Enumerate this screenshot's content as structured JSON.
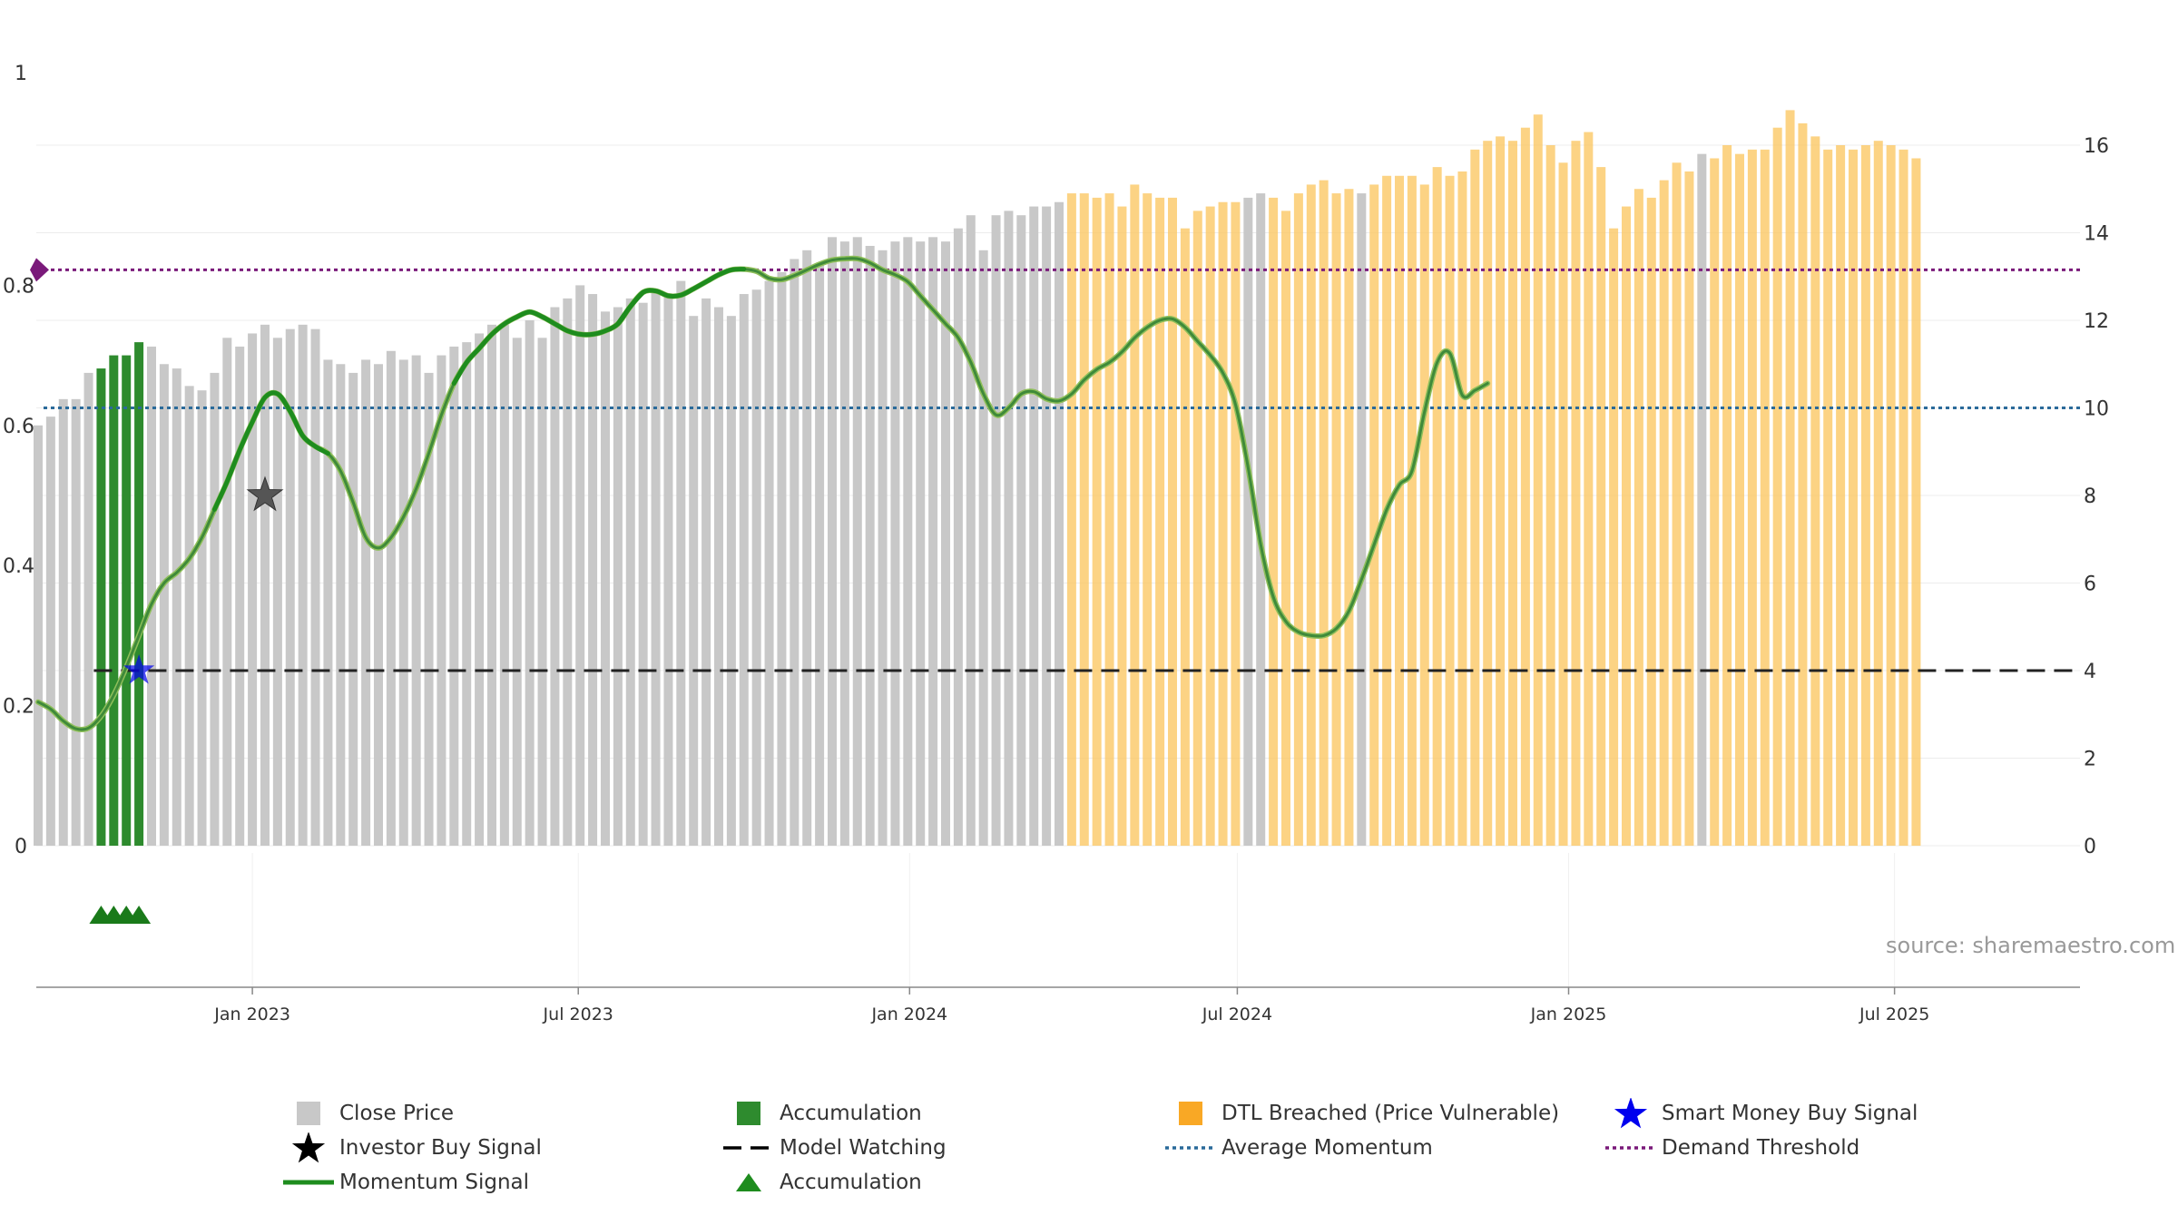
{
  "chart_data": {
    "type": "bar",
    "title": "",
    "source": "source: sharemaestro.com",
    "left_axis": {
      "ticks": [
        "0",
        "0.2",
        "0.4",
        "0.6",
        "0.8",
        "1"
      ],
      "range": [
        0,
        1
      ]
    },
    "right_axis": {
      "ticks": [
        "0",
        "2",
        "4",
        "6",
        "8",
        "10",
        "12",
        "14",
        "16"
      ],
      "range": [
        0,
        16
      ]
    },
    "x_axis": {
      "range": [
        "2022-09-03",
        "2025-10-12"
      ],
      "ticks": [
        "Jan 2023",
        "Jul 2023",
        "Jan 2024",
        "Jul 2024",
        "Jan 2025",
        "Jul 2025"
      ]
    },
    "weekly_start": "2022-09-04",
    "close_price": [
      9.6,
      9.8,
      10.2,
      10.2,
      10.8,
      10.9,
      11.2,
      11.2,
      11.5,
      11.4,
      11.0,
      10.9,
      10.5,
      10.4,
      10.8,
      11.6,
      11.4,
      11.7,
      11.9,
      11.6,
      11.8,
      11.9,
      11.8,
      11.1,
      11.0,
      10.8,
      11.1,
      11.0,
      11.3,
      11.1,
      11.2,
      10.8,
      11.2,
      11.4,
      11.5,
      11.7,
      11.9,
      11.9,
      11.6,
      12.0,
      11.6,
      12.3,
      12.5,
      12.8,
      12.6,
      12.2,
      12.3,
      12.5,
      12.4,
      12.7,
      12.6,
      12.9,
      12.1,
      12.5,
      12.3,
      12.1,
      12.6,
      12.7,
      12.9,
      13.1,
      13.4,
      13.6,
      13.3,
      13.9,
      13.8,
      13.9,
      13.7,
      13.6,
      13.8,
      13.9,
      13.8,
      13.9,
      13.8,
      14.1,
      14.4,
      13.6,
      14.4,
      14.5,
      14.4,
      14.6,
      14.6,
      14.7,
      14.9,
      14.9,
      14.8,
      14.9,
      14.6,
      15.1,
      14.9,
      14.8,
      14.8,
      14.1,
      14.5,
      14.6,
      14.7,
      14.7,
      14.8,
      14.9,
      14.8,
      14.5,
      14.9,
      15.1,
      15.2,
      14.9,
      15.0,
      14.9,
      15.1,
      15.3,
      15.3,
      15.3,
      15.1,
      15.5,
      15.3,
      15.4,
      15.9,
      16.1,
      16.2,
      16.1,
      16.4,
      16.7,
      16.0,
      15.6,
      16.1,
      16.3,
      15.5,
      14.1,
      14.6,
      15.0,
      14.8,
      15.2,
      15.6,
      15.4,
      15.8,
      15.7,
      16.0,
      15.8,
      15.9,
      15.9,
      16.4,
      16.8,
      16.5,
      16.2,
      15.9,
      16.0,
      15.9,
      16.0,
      16.1,
      16.0,
      15.9,
      15.7
    ],
    "bar_state": "GGGGGGGGGGGGGGGGGGGGGGGGGGGGGGGGGGGGGGGGGGGGGGGGGGGGGGGGGGGGGGGGGGGGGGGGGGGGGGGGGGGGGGGGGGGGGGGGGGGGGGGGGGGGGGGGGGGGGGGGGGGGGGGGGGGGGGGGGGGGGGGGGGGGGGGGGGG",
    "bar_state_override": {
      "accumulation_weeks": [
        5,
        6,
        7,
        8
      ],
      "dtl_breached_from_week": 82,
      "grey_weeks": [
        96,
        97,
        105,
        132
      ]
    },
    "momentum_signal": [
      0.205,
      0.195,
      0.178,
      0.167,
      0.168,
      0.185,
      0.215,
      0.255,
      0.3,
      0.345,
      0.375,
      0.39,
      0.41,
      0.44,
      0.48,
      0.52,
      0.565,
      0.605,
      0.64,
      0.645,
      0.62,
      0.585,
      0.57,
      0.56,
      0.535,
      0.49,
      0.44,
      0.425,
      0.44,
      0.47,
      0.51,
      0.56,
      0.615,
      0.66,
      0.69,
      0.71,
      0.73,
      0.745,
      0.755,
      0.762,
      0.755,
      0.745,
      0.735,
      0.73,
      0.73,
      0.735,
      0.745,
      0.77,
      0.79,
      0.792,
      0.785,
      0.786,
      0.795,
      0.805,
      0.815,
      0.822,
      0.823,
      0.82,
      0.81,
      0.808,
      0.814,
      0.822,
      0.83,
      0.836,
      0.838,
      0.838,
      0.832,
      0.822,
      0.815,
      0.805,
      0.785,
      0.765,
      0.745,
      0.725,
      0.69,
      0.645,
      0.615,
      0.625,
      0.645,
      0.648,
      0.638,
      0.635,
      0.645,
      0.665,
      0.68,
      0.69,
      0.705,
      0.725,
      0.74,
      0.75,
      0.752,
      0.74,
      0.72,
      0.7,
      0.675,
      0.63,
      0.54,
      0.43,
      0.355,
      0.32,
      0.305,
      0.3,
      0.3,
      0.31,
      0.335,
      0.38,
      0.43,
      0.48,
      0.515,
      0.535,
      0.62,
      0.69,
      0.703,
      0.643,
      0.65,
      0.66
    ],
    "momentum_start_week": 0,
    "momentum_bright_weeks": [
      0,
      48
    ],
    "average_momentum": 0.625,
    "demand_threshold": 0.822,
    "model_watching": 0.25,
    "model_watching_from_week": 5,
    "investor_buy_signal": {
      "week": 18,
      "value": 0.5
    },
    "smart_money_buy_signal": {
      "week": 8,
      "value": 0.25
    },
    "accumulation_markers_weeks": [
      5,
      6,
      7,
      8
    ],
    "series_colors": {
      "close_price": "#c8c8c8",
      "accumulation": "#2e8b2e",
      "dtl_breached": "#fbc761",
      "momentum": "#1e8c1e",
      "average_momentum": "#2a6a9a",
      "demand_threshold": "#7a1a7a",
      "model_watching": "#222222",
      "smart_money": "#0000ee",
      "investor": "#555555"
    }
  },
  "legend": [
    {
      "label": "Close Price",
      "symbol": "grey-square"
    },
    {
      "label": "Accumulation",
      "symbol": "green-square"
    },
    {
      "label": "DTL Breached (Price Vulnerable)",
      "symbol": "orange-square"
    },
    {
      "label": "Smart Money Buy Signal",
      "symbol": "blue-star"
    },
    {
      "label": "Investor Buy Signal",
      "symbol": "black-star"
    },
    {
      "label": "Model Watching",
      "symbol": "black-dash"
    },
    {
      "label": "Average Momentum",
      "symbol": "blue-dotted"
    },
    {
      "label": "Demand Threshold",
      "symbol": "purple-dotted"
    },
    {
      "label": "Momentum Signal",
      "symbol": "green-line"
    },
    {
      "label": "Accumulation",
      "symbol": "green-triangle"
    }
  ]
}
